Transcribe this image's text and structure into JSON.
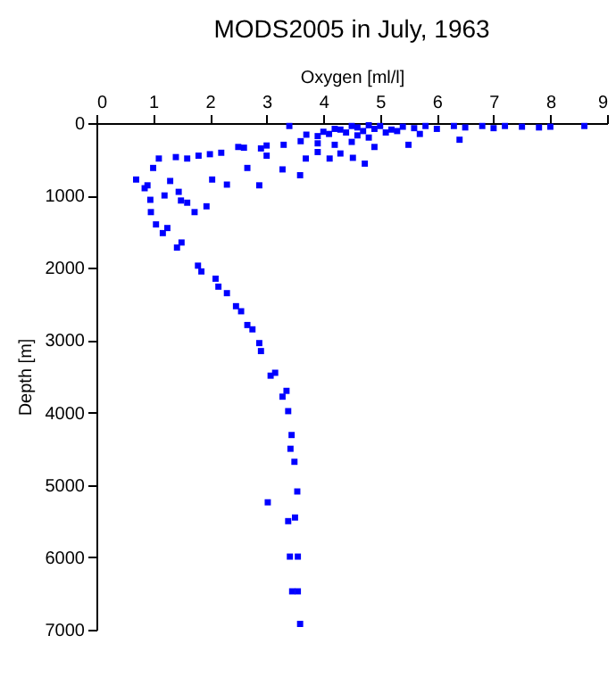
{
  "chart_data": {
    "type": "scatter",
    "title": "MODS2005 in July, 1963",
    "xlabel": "Oxygen [ml/l]",
    "ylabel": "Depth [m]",
    "xlim": [
      0,
      9
    ],
    "xticks": [
      0,
      1,
      2,
      3,
      4,
      5,
      6,
      7,
      8,
      9
    ],
    "ylim": [
      7000,
      0
    ],
    "yticks": [
      0,
      1000,
      2000,
      3000,
      4000,
      5000,
      6000,
      7000
    ],
    "grid": false,
    "marker": "square",
    "x": [
      8.6,
      8.0,
      7.8,
      7.5,
      7.2,
      7.0,
      6.8,
      6.5,
      6.3,
      6.0,
      5.8,
      5.6,
      5.4,
      5.2,
      5.0,
      4.9,
      4.8,
      4.7,
      4.6,
      4.5,
      4.4,
      4.3,
      4.2,
      4.1,
      4.0,
      3.9,
      3.7,
      3.4,
      5.1,
      4.8,
      4.6,
      5.3,
      5.7,
      6.4,
      5.5,
      4.9,
      4.5,
      4.2,
      3.9,
      3.6,
      3.3,
      3.0,
      2.9,
      2.6,
      2.5,
      2.2,
      2.0,
      1.8,
      1.6,
      1.4,
      1.1,
      1.0,
      0.9,
      0.7,
      0.85,
      0.95,
      0.96,
      1.05,
      1.17,
      1.25,
      1.42,
      1.5,
      1.49,
      1.6,
      1.73,
      1.94,
      2.04,
      2.3,
      2.87,
      2.66,
      3.28,
      3.59,
      3.69,
      4.11,
      4.52,
      4.73,
      4.3,
      3.9,
      3.0,
      1.3,
      1.2,
      1.45,
      1.79,
      1.85,
      2.1,
      2.15,
      2.3,
      2.46,
      2.55,
      2.66,
      2.75,
      2.87,
      2.9,
      3.07,
      3.15,
      3.28,
      3.35,
      3.38,
      3.44,
      3.49,
      3.42,
      3.54,
      3.02,
      3.38,
      3.5,
      3.41,
      3.55,
      3.45,
      3.55,
      3.59
    ],
    "series": [
      {
        "color": "#0000ff",
        "values": [
          40,
          50,
          60,
          50,
          40,
          70,
          40,
          60,
          40,
          80,
          40,
          70,
          50,
          90,
          40,
          80,
          30,
          110,
          60,
          40,
          130,
          90,
          80,
          150,
          120,
          180,
          160,
          40,
          130,
          200,
          170,
          110,
          150,
          230,
          300,
          330,
          260,
          300,
          280,
          250,
          300,
          310,
          350,
          340,
          330,
          410,
          430,
          450,
          490,
          470,
          490,
          620,
          860,
          780,
          900,
          1060,
          1230,
          1400,
          1520,
          1450,
          1720,
          1650,
          1070,
          1100,
          1230,
          1150,
          780,
          850,
          860,
          620,
          640,
          720,
          490,
          490,
          480,
          560,
          420,
          400,
          450,
          800,
          1000,
          950,
          1970,
          2050,
          2150,
          2260,
          2350,
          2530,
          2600,
          2790,
          2850,
          3040,
          3150,
          3490,
          3450,
          3780,
          3700,
          3980,
          4310,
          4680,
          4500,
          5090,
          5240,
          5500,
          5450,
          5990,
          5990,
          6470,
          6470,
          6920
        ]
      }
    ]
  }
}
